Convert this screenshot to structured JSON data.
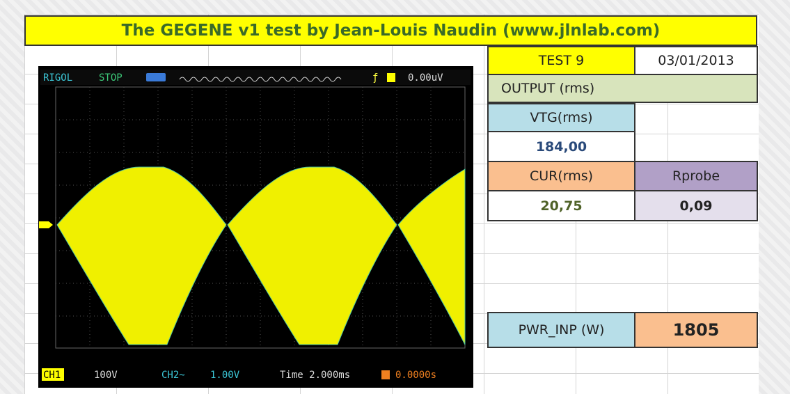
{
  "header": {
    "title": "The GEGENE v1 test by Jean-Louis Naudin (www.jlnlab.com)"
  },
  "scope": {
    "brand": "RIGOL",
    "status": "STOP",
    "trigger_level": "0.00uV",
    "ch1": "CH1",
    "ch1_scale": "100V",
    "ch2": "CH2~",
    "ch2_scale": "1.00V",
    "timebase": "Time 2.000ms",
    "trigger_offset": "0.0000s"
  },
  "table": {
    "test": "TEST 9",
    "date": "03/01/2013",
    "output": "OUTPUT (rms)",
    "vtg_label": "VTG(rms)",
    "vtg_value": "184,00",
    "cur_label": "CUR(rms)",
    "cur_value": "20,75",
    "rprobe_label": "Rprobe",
    "rprobe_value": "0,09",
    "pwr_label": "PWR_INP (W)",
    "pwr_value": "1805"
  }
}
